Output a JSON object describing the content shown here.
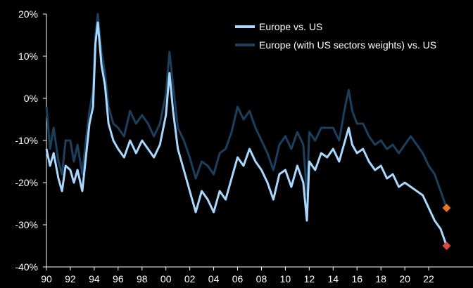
{
  "chart_data": {
    "type": "line",
    "title": "",
    "xlabel": "",
    "ylabel": "",
    "ylim": [
      -40,
      20
    ],
    "xlim": [
      1990,
      2024
    ],
    "y_ticks": [
      20,
      10,
      0,
      -10,
      -20,
      -30,
      -40
    ],
    "y_tick_labels": [
      "20%",
      "10%",
      "0%",
      "-10%",
      "-20%",
      "-30%",
      "-40%"
    ],
    "x_ticks": [
      1990,
      1992,
      1994,
      1996,
      1998,
      2000,
      2002,
      2004,
      2006,
      2008,
      2010,
      2012,
      2014,
      2016,
      2018,
      2020,
      2022
    ],
    "x_tick_labels": [
      "90",
      "92",
      "94",
      "96",
      "98",
      "00",
      "02",
      "04",
      "06",
      "08",
      "10",
      "12",
      "14",
      "16",
      "18",
      "20",
      "22"
    ],
    "legend_position": "top-right",
    "series": [
      {
        "name": "Europe vs. US",
        "color": "#a9d8ff",
        "end_marker_color": "#e0483c",
        "x": [
          1990.0,
          1990.3,
          1990.6,
          1991.0,
          1991.3,
          1991.6,
          1992.0,
          1992.3,
          1992.6,
          1993.0,
          1993.3,
          1993.6,
          1993.9,
          1994.1,
          1994.3,
          1994.6,
          1994.9,
          1995.2,
          1995.6,
          1996.0,
          1996.5,
          1997.0,
          1997.5,
          1998.0,
          1998.5,
          1999.0,
          1999.5,
          2000.0,
          2000.3,
          2000.6,
          2001.0,
          2001.5,
          2002.0,
          2002.5,
          2003.0,
          2003.5,
          2004.0,
          2004.5,
          2005.0,
          2005.5,
          2006.0,
          2006.5,
          2007.0,
          2007.5,
          2008.0,
          2008.5,
          2009.0,
          2009.5,
          2010.0,
          2010.5,
          2011.0,
          2011.5,
          2011.8,
          2012.0,
          2012.5,
          2013.0,
          2013.5,
          2014.0,
          2014.5,
          2015.0,
          2015.3,
          2015.6,
          2016.0,
          2016.5,
          2017.0,
          2017.5,
          2018.0,
          2018.5,
          2019.0,
          2019.5,
          2020.0,
          2020.5,
          2021.0,
          2021.5,
          2022.0,
          2022.5,
          2023.0,
          2023.5
        ],
        "values": [
          -12,
          -16,
          -13,
          -19,
          -22,
          -16,
          -17,
          -20,
          -17,
          -22,
          -14,
          -6,
          -2,
          13,
          18,
          8,
          3,
          -6,
          -10,
          -12,
          -14,
          -10,
          -13,
          -10,
          -12,
          -14,
          -11,
          -4,
          6,
          -3,
          -12,
          -17,
          -22,
          -27,
          -22,
          -24,
          -27,
          -22,
          -24,
          -19,
          -14,
          -16,
          -12,
          -15,
          -17,
          -20,
          -24,
          -18,
          -17,
          -21,
          -16,
          -20,
          -29,
          -15,
          -17,
          -13,
          -14,
          -12,
          -15,
          -10,
          -7,
          -11,
          -13,
          -12,
          -15,
          -17,
          -16,
          -19,
          -18,
          -21,
          -20,
          -21,
          -22,
          -23,
          -26,
          -29,
          -31,
          -35
        ]
      },
      {
        "name": "Europe (with US sectors weights) vs. US",
        "color": "#1b3f5c",
        "end_marker_color": "#e8741c",
        "x": [
          1990.0,
          1990.3,
          1990.6,
          1991.0,
          1991.3,
          1991.6,
          1992.0,
          1992.3,
          1992.6,
          1993.0,
          1993.3,
          1993.6,
          1993.9,
          1994.1,
          1994.3,
          1994.6,
          1994.9,
          1995.2,
          1995.6,
          1996.0,
          1996.5,
          1997.0,
          1997.5,
          1998.0,
          1998.5,
          1999.0,
          1999.5,
          2000.0,
          2000.3,
          2000.6,
          2001.0,
          2001.5,
          2002.0,
          2002.5,
          2003.0,
          2003.5,
          2004.0,
          2004.5,
          2005.0,
          2005.5,
          2006.0,
          2006.5,
          2007.0,
          2007.5,
          2008.0,
          2008.5,
          2009.0,
          2009.5,
          2010.0,
          2010.5,
          2011.0,
          2011.5,
          2011.8,
          2012.0,
          2012.5,
          2013.0,
          2013.5,
          2014.0,
          2014.5,
          2015.0,
          2015.3,
          2015.6,
          2016.0,
          2016.5,
          2017.0,
          2017.5,
          2018.0,
          2018.5,
          2019.0,
          2019.5,
          2020.0,
          2020.5,
          2021.0,
          2021.5,
          2022.0,
          2022.5,
          2023.0,
          2023.5
        ],
        "values": [
          -2,
          -12,
          -7,
          -15,
          -18,
          -10,
          -10,
          -15,
          -11,
          -18,
          -10,
          -3,
          2,
          15,
          20,
          11,
          6,
          -2,
          -6,
          -7,
          -9,
          -3,
          -6,
          -4,
          -6,
          -9,
          -6,
          1,
          11,
          3,
          -7,
          -10,
          -14,
          -19,
          -15,
          -16,
          -18,
          -13,
          -12,
          -8,
          -2,
          -5,
          -3,
          -7,
          -10,
          -13,
          -17,
          -11,
          -9,
          -12,
          -8,
          -11,
          -23,
          -8,
          -10,
          -7,
          -7,
          -7,
          -10,
          -2,
          2,
          -3,
          -6,
          -6,
          -9,
          -11,
          -10,
          -12,
          -11,
          -13,
          -11,
          -9,
          -11,
          -13,
          -16,
          -18,
          -22,
          -26
        ]
      }
    ]
  }
}
